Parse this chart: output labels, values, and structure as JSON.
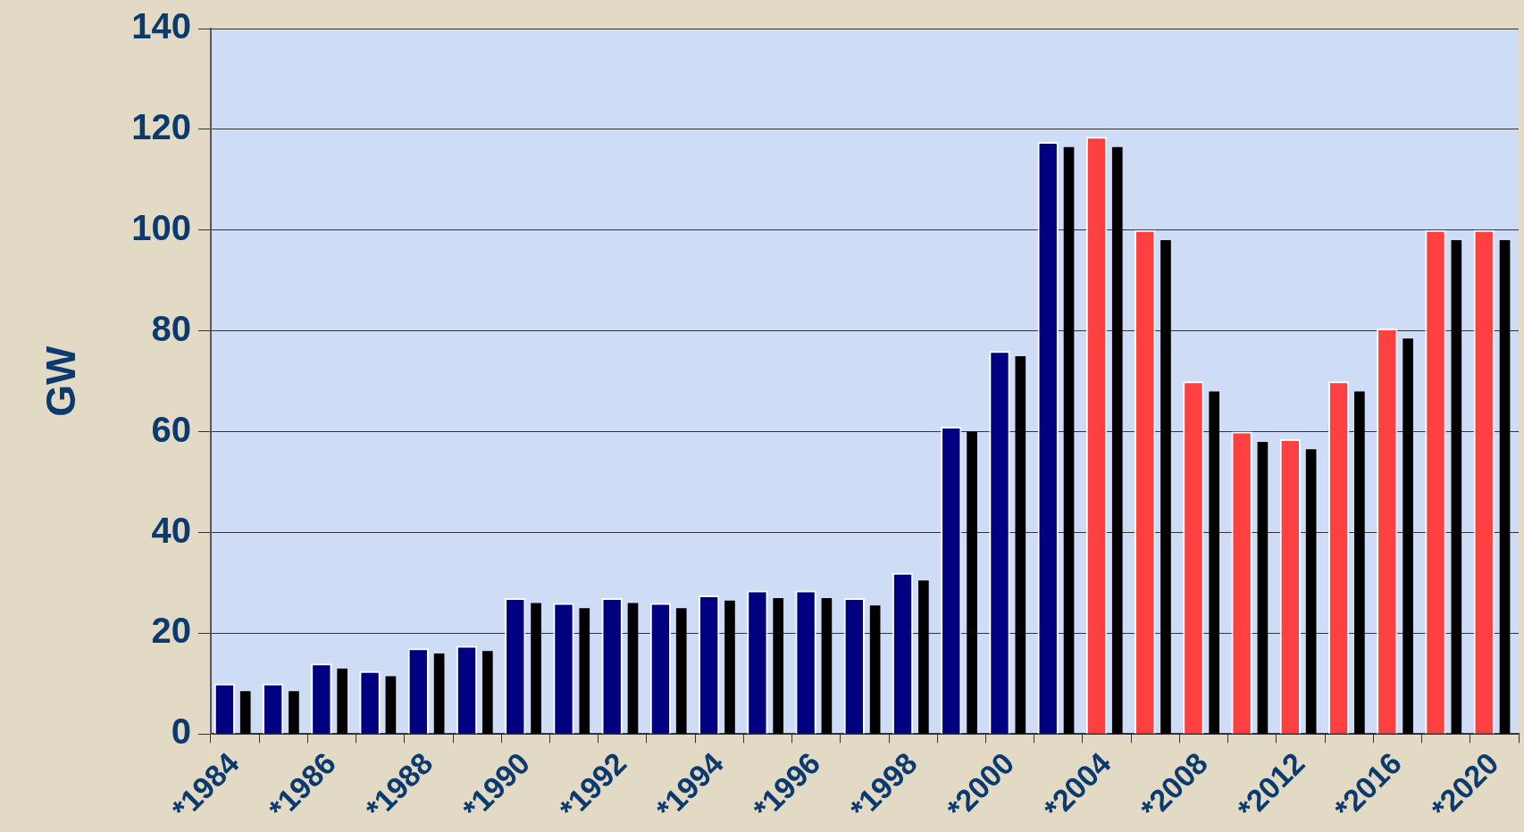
{
  "chart_data": {
    "type": "bar",
    "ylabel": "GW",
    "categories": [
      "*1984",
      null,
      "*1986",
      null,
      "*1988",
      null,
      "*1990",
      null,
      "*1992",
      null,
      "*1994",
      null,
      "*1996",
      null,
      "*1998",
      null,
      "*2000",
      null,
      "*2004",
      null,
      "*2008",
      null,
      "*2012",
      null,
      "*2016",
      null,
      "*2020"
    ],
    "series": [
      {
        "colors": [
          "#000080",
          "#000080",
          "#000080",
          "#000080",
          "#000080",
          "#000080",
          "#000080",
          "#000080",
          "#000080",
          "#000080",
          "#000080",
          "#000080",
          "#000080",
          "#000080",
          "#000080",
          "#000080",
          "#000080",
          "#000080",
          "#ff4040",
          "#ff4040",
          "#ff4040",
          "#ff4040",
          "#ff4040",
          "#ff4040",
          "#ff4040",
          "#ff4040",
          "#ff4040"
        ],
        "values": [
          10,
          10,
          14,
          12.5,
          17,
          17.5,
          27,
          26,
          27,
          26,
          27.5,
          28.5,
          28.5,
          27,
          32,
          61,
          76,
          117.5,
          118.5,
          100,
          70,
          60,
          58.5,
          70,
          80.5,
          100,
          100
        ]
      },
      {
        "color": "#000000",
        "values": [
          8.5,
          8.5,
          13,
          11.5,
          16,
          16.5,
          26,
          25,
          26,
          25,
          26.5,
          27,
          27,
          25.5,
          30.5,
          60,
          75,
          116.5,
          116.5,
          98,
          68,
          58,
          56.5,
          68,
          78.5,
          98,
          98
        ]
      }
    ],
    "ylim": [
      0,
      140
    ],
    "yticks": [
      0,
      20,
      40,
      60,
      80,
      100,
      120,
      140
    ],
    "grid": "y"
  }
}
